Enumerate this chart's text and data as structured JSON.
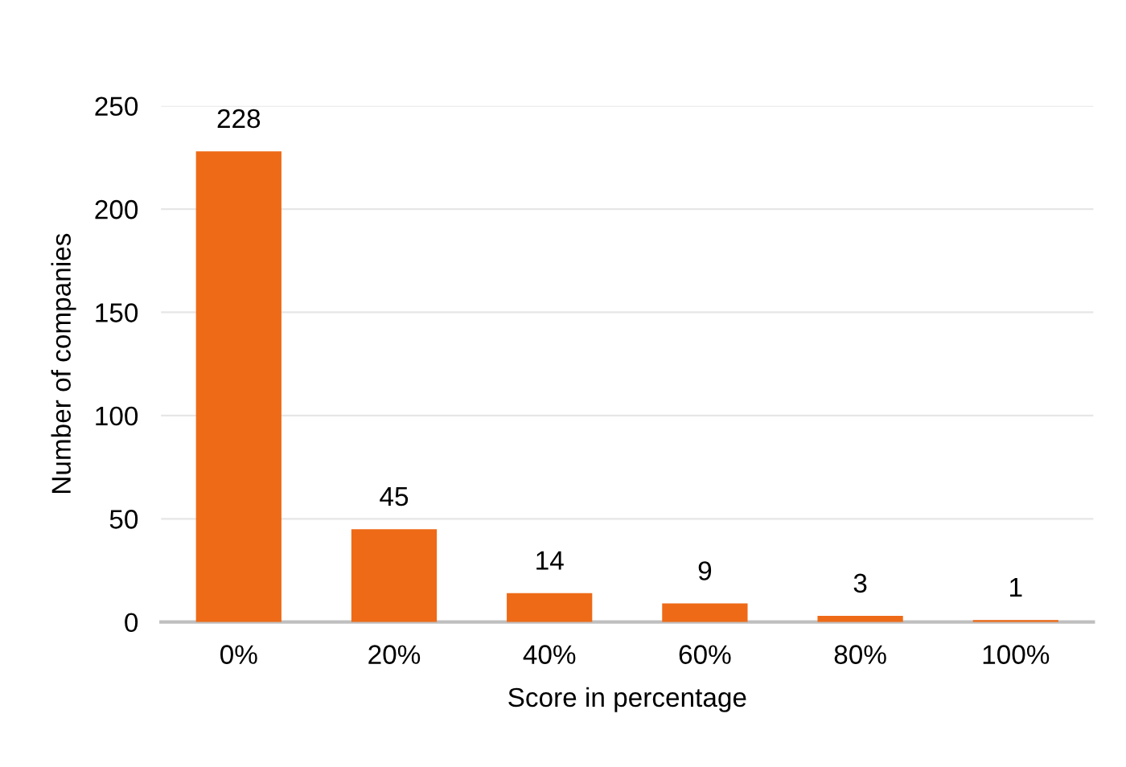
{
  "chart_data": {
    "type": "bar",
    "xlabel": "Score in percentage",
    "ylabel": "Number of companies",
    "categories": [
      "0%",
      "20%",
      "40%",
      "60%",
      "80%",
      "100%"
    ],
    "values": [
      228,
      45,
      14,
      9,
      3,
      1
    ],
    "color": "#ee6a17",
    "ylim": [
      0,
      250
    ],
    "yticks": [
      0,
      50,
      100,
      150,
      200,
      250
    ],
    "grid": "y",
    "data_labels": true
  }
}
